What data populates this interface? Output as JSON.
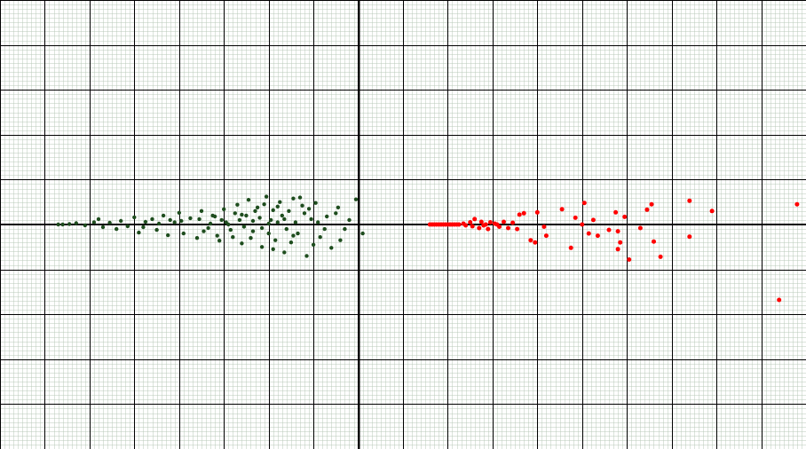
{
  "chart_data": {
    "type": "scatter",
    "x_range": [
      -8,
      10
    ],
    "y_range": [
      -5,
      5
    ],
    "grid": true,
    "grid_major_step": 1,
    "grid_minor_step": 0.1,
    "colors": {
      "minor_grid": "#b9c9b9",
      "major_grid": "#000000",
      "axes": "#000000",
      "left_cluster": "#1e4d1e",
      "right_cluster": "#ff0000"
    },
    "series": [
      {
        "color_key": "left_cluster",
        "points": [
          [
            -6.7,
            0.0
          ],
          [
            -6.6,
            0.0
          ],
          [
            -6.45,
            0.01
          ],
          [
            -6.3,
            0.03
          ],
          [
            -6.1,
            -0.02
          ],
          [
            -5.9,
            0.05
          ],
          [
            -5.8,
            0.12
          ],
          [
            -5.7,
            -0.06
          ],
          [
            -5.55,
            0.04
          ],
          [
            -5.4,
            -0.1
          ],
          [
            -5.3,
            0.08
          ],
          [
            -5.15,
            -0.04
          ],
          [
            -5.0,
            0.16
          ],
          [
            -4.9,
            -0.18
          ],
          [
            -4.75,
            0.06
          ],
          [
            -4.6,
            0.12
          ],
          [
            -4.5,
            -0.12
          ],
          [
            -4.35,
            0.2
          ],
          [
            -4.25,
            -0.24
          ],
          [
            -4.1,
            0.05
          ],
          [
            -4.0,
            0.26
          ],
          [
            -3.9,
            -0.2
          ],
          [
            -3.75,
            0.14
          ],
          [
            -3.6,
            -0.3
          ],
          [
            -3.5,
            0.3
          ],
          [
            -3.35,
            -0.08
          ],
          [
            -3.25,
            0.2
          ],
          [
            -3.1,
            -0.36
          ],
          [
            -3.0,
            0.34
          ],
          [
            -2.9,
            0.0
          ],
          [
            -2.8,
            -0.28
          ],
          [
            -2.7,
            0.44
          ],
          [
            -2.6,
            -0.42
          ],
          [
            -2.5,
            0.2
          ],
          [
            -2.45,
            0.55
          ],
          [
            -2.35,
            -0.15
          ],
          [
            -2.25,
            0.38
          ],
          [
            -2.15,
            -0.5
          ],
          [
            -2.05,
            0.62
          ],
          [
            -1.95,
            0.1
          ],
          [
            -1.85,
            -0.35
          ],
          [
            -1.75,
            0.5
          ],
          [
            -1.65,
            -0.62
          ],
          [
            -1.55,
            0.3
          ],
          [
            -1.45,
            0.58
          ],
          [
            -1.35,
            -0.2
          ],
          [
            -1.25,
            0.42
          ],
          [
            -1.15,
            -0.7
          ],
          [
            -1.05,
            0.12
          ],
          [
            -0.95,
            0.48
          ],
          [
            -0.85,
            -0.28
          ],
          [
            -0.7,
            0.18
          ],
          [
            -0.6,
            -0.52
          ],
          [
            -0.45,
            0.38
          ],
          [
            -0.3,
            -0.1
          ],
          [
            -0.2,
            0.1
          ],
          [
            -0.05,
            0.56
          ],
          [
            0.1,
            -0.2
          ],
          [
            -1.2,
            0.25
          ],
          [
            -1.8,
            0.05
          ],
          [
            -2.2,
            0.15
          ],
          [
            -2.55,
            -0.05
          ],
          [
            -3.05,
            0.1
          ],
          [
            -3.45,
            -0.15
          ],
          [
            -3.95,
            0.08
          ],
          [
            -4.45,
            0.02
          ],
          [
            -1.6,
            -0.1
          ],
          [
            -2.0,
            -0.2
          ],
          [
            -1.4,
            0.05
          ],
          [
            -2.3,
            0.3
          ],
          [
            -2.65,
            0.1
          ],
          [
            -2.85,
            -0.12
          ],
          [
            -3.2,
            0.18
          ],
          [
            -0.9,
            0.05
          ],
          [
            -1.0,
            -0.45
          ],
          [
            -1.5,
            -0.4
          ],
          [
            -2.1,
            0.45
          ],
          [
            -2.4,
            -0.3
          ],
          [
            -1.7,
            0.2
          ],
          [
            -1.9,
            -0.55
          ],
          [
            -2.75,
            0.25
          ],
          [
            -3.15,
            -0.25
          ],
          [
            -3.55,
            0.12
          ],
          [
            -0.5,
            0.25
          ],
          [
            -0.75,
            -0.1
          ],
          [
            -1.3,
            0.6
          ],
          [
            -1.1,
            0.35
          ],
          [
            -0.4,
            -0.35
          ],
          [
            -2.95,
            0.05
          ],
          [
            -1.9,
            0.32
          ],
          [
            -2.6,
            0.22
          ],
          [
            -1.65,
            0.12
          ],
          [
            -2.15,
            -0.08
          ],
          [
            -3.3,
            0.02
          ],
          [
            -4.2,
            0.1
          ],
          [
            -4.8,
            -0.06
          ],
          [
            -2.0,
            0.02
          ],
          [
            -1.8,
            0.4
          ],
          [
            -2.35,
            0.08
          ],
          [
            -1.45,
            -0.25
          ]
        ]
      },
      {
        "color_key": "right_cluster",
        "points": [
          [
            1.6,
            0.0
          ],
          [
            1.65,
            0.0
          ],
          [
            1.7,
            0.0
          ],
          [
            1.75,
            0.0
          ],
          [
            1.8,
            0.0
          ],
          [
            1.85,
            0.0
          ],
          [
            1.9,
            0.0
          ],
          [
            1.95,
            0.0
          ],
          [
            2.0,
            0.0
          ],
          [
            2.05,
            0.0
          ],
          [
            2.1,
            0.0
          ],
          [
            2.15,
            0.0
          ],
          [
            2.2,
            0.0
          ],
          [
            2.25,
            0.0
          ],
          [
            2.35,
            0.02
          ],
          [
            2.4,
            -0.02
          ],
          [
            2.5,
            0.05
          ],
          [
            2.55,
            -0.04
          ],
          [
            2.6,
            0.12
          ],
          [
            2.7,
            -0.08
          ],
          [
            2.75,
            0.06
          ],
          [
            2.85,
            0.0
          ],
          [
            2.9,
            -0.1
          ],
          [
            2.95,
            0.05
          ],
          [
            3.05,
            0.02
          ],
          [
            3.15,
            -0.05
          ],
          [
            3.25,
            0.06
          ],
          [
            3.35,
            -0.08
          ],
          [
            3.45,
            0.04
          ],
          [
            3.55,
            -0.1
          ],
          [
            3.6,
            0.22
          ],
          [
            3.7,
            0.25
          ],
          [
            3.85,
            -0.35
          ],
          [
            3.95,
            -0.4
          ],
          [
            4.0,
            0.27
          ],
          [
            4.15,
            -0.05
          ],
          [
            4.2,
            -0.25
          ],
          [
            4.55,
            0.34
          ],
          [
            4.75,
            -0.52
          ],
          [
            5.0,
            0.0
          ],
          [
            5.05,
            0.48
          ],
          [
            5.15,
            -0.2
          ],
          [
            5.25,
            0.1
          ],
          [
            5.35,
            -0.25
          ],
          [
            5.6,
            -0.12
          ],
          [
            5.75,
            0.27
          ],
          [
            5.8,
            -0.15
          ],
          [
            5.85,
            -0.4
          ],
          [
            5.95,
            0.17
          ],
          [
            6.05,
            -0.78
          ],
          [
            6.3,
            -0.08
          ],
          [
            6.45,
            0.33
          ],
          [
            6.55,
            0.45
          ],
          [
            6.6,
            -0.38
          ],
          [
            6.75,
            -0.72
          ],
          [
            7.4,
            0.53
          ],
          [
            7.4,
            -0.27
          ],
          [
            7.9,
            0.3
          ],
          [
            9.4,
            -1.68
          ],
          [
            9.8,
            0.45
          ],
          [
            5.8,
            -0.55
          ],
          [
            4.85,
            0.15
          ],
          [
            2.8,
            -0.02
          ],
          [
            3.1,
            0.0
          ]
        ]
      }
    ]
  }
}
